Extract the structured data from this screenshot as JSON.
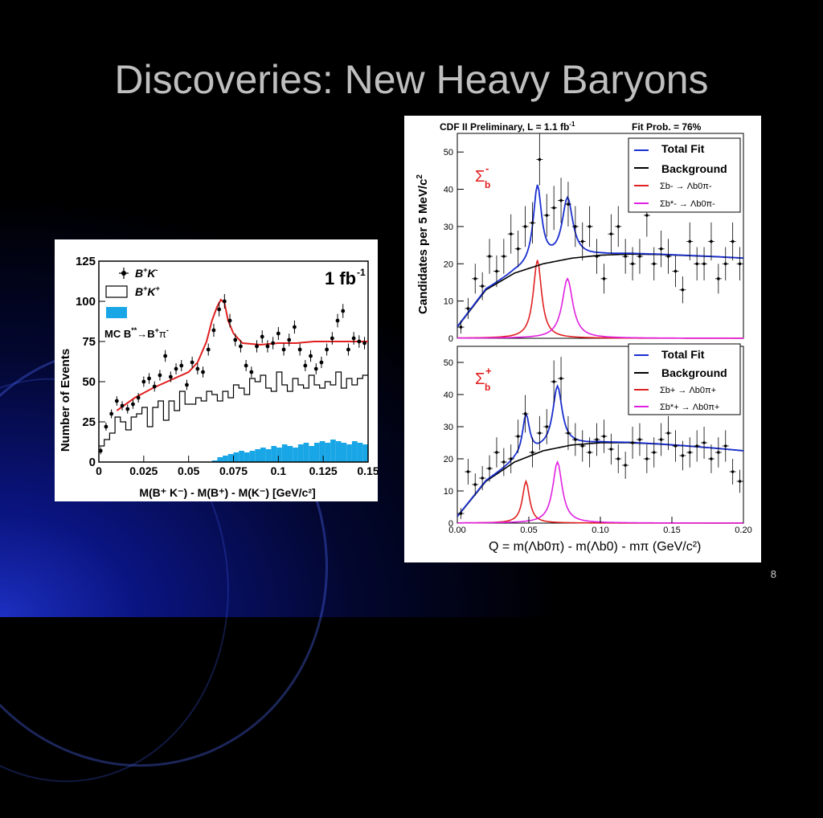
{
  "slide": {
    "title": "Discoveries: New Heavy Baryons",
    "page_number": "8"
  },
  "colors": {
    "fit_red": "#e02020",
    "fit_blue": "#1a2fd0",
    "bg_black": "#000000",
    "sig_magenta": "#e020e0",
    "mc_fill": "#19a6e6"
  },
  "chart_data": [
    {
      "type": "scatter",
      "title": "",
      "xlabel": "M(B⁺ K⁻) - M(B⁺) - M(K⁻) [GeV/c²]",
      "ylabel": "Number of Events",
      "xlim": [
        0,
        0.15
      ],
      "ylim": [
        0,
        125
      ],
      "x_ticks": [
        "0",
        "0.025",
        "0.05",
        "0.075",
        "0.1",
        "0.125",
        "0.15"
      ],
      "y_ticks": [
        "0",
        "25",
        "50",
        "75",
        "100",
        "125"
      ],
      "annotation": "1 fb",
      "annotation_sup": "-1",
      "legend": [
        {
          "label": "B",
          "sup": "+",
          "label2": "K",
          "sup2": "-",
          "style": "points"
        },
        {
          "label": "B",
          "sup": "+",
          "label2": "K",
          "sup2": "+",
          "style": "histogram"
        },
        {
          "label": "MC B",
          "sup": "**",
          "label2": "→B",
          "sup2": "+",
          "label3": "π",
          "sup3": "-",
          "style": "filled"
        }
      ],
      "series": [
        {
          "name": "B+K-",
          "x": [
            0.001,
            0.004,
            0.007,
            0.01,
            0.013,
            0.016,
            0.019,
            0.022,
            0.025,
            0.028,
            0.031,
            0.034,
            0.037,
            0.04,
            0.043,
            0.046,
            0.049,
            0.052,
            0.055,
            0.058,
            0.061,
            0.064,
            0.067,
            0.07,
            0.073,
            0.076,
            0.079,
            0.082,
            0.085,
            0.088,
            0.091,
            0.094,
            0.097,
            0.1,
            0.103,
            0.106,
            0.109,
            0.112,
            0.115,
            0.118,
            0.121,
            0.124,
            0.127,
            0.13,
            0.133,
            0.136,
            0.139,
            0.142,
            0.145,
            0.148
          ],
          "y": [
            7,
            22,
            30,
            38,
            35,
            33,
            36,
            40,
            50,
            52,
            47,
            54,
            66,
            53,
            58,
            60,
            48,
            62,
            58,
            56,
            70,
            82,
            95,
            100,
            88,
            76,
            72,
            60,
            56,
            72,
            78,
            72,
            74,
            80,
            70,
            76,
            84,
            70,
            60,
            66,
            58,
            62,
            70,
            77,
            88,
            94,
            70,
            77,
            75,
            74
          ]
        },
        {
          "name": "B+K+",
          "x": [
            0,
            0.003,
            0.006,
            0.009,
            0.012,
            0.015,
            0.018,
            0.021,
            0.024,
            0.027,
            0.03,
            0.033,
            0.036,
            0.039,
            0.042,
            0.045,
            0.048,
            0.051,
            0.054,
            0.057,
            0.06,
            0.063,
            0.066,
            0.069,
            0.072,
            0.075,
            0.078,
            0.081,
            0.084,
            0.087,
            0.09,
            0.093,
            0.096,
            0.099,
            0.102,
            0.105,
            0.108,
            0.111,
            0.114,
            0.117,
            0.12,
            0.123,
            0.126,
            0.129,
            0.132,
            0.135,
            0.138,
            0.141,
            0.144,
            0.147
          ],
          "y": [
            10,
            14,
            18,
            28,
            25,
            20,
            28,
            30,
            34,
            22,
            34,
            38,
            26,
            38,
            32,
            44,
            36,
            36,
            40,
            38,
            44,
            42,
            38,
            44,
            40,
            48,
            46,
            42,
            52,
            50,
            54,
            46,
            44,
            56,
            48,
            44,
            52,
            48,
            46,
            54,
            48,
            46,
            50,
            48,
            56,
            46,
            52,
            48,
            52,
            54
          ]
        },
        {
          "name": "MC B**→B+π-",
          "x": [
            0.063,
            0.066,
            0.069,
            0.072,
            0.075,
            0.078,
            0.081,
            0.084,
            0.087,
            0.09,
            0.093,
            0.096,
            0.099,
            0.102,
            0.105,
            0.108,
            0.111,
            0.114,
            0.117,
            0.12,
            0.123,
            0.126,
            0.129,
            0.132,
            0.135,
            0.138,
            0.141,
            0.144,
            0.147
          ],
          "y": [
            1,
            3,
            4,
            5,
            6,
            7,
            6,
            7,
            8,
            9,
            8,
            10,
            9,
            11,
            10,
            9,
            11,
            12,
            10,
            12,
            13,
            12,
            14,
            13,
            12,
            11,
            13,
            12,
            11
          ]
        },
        {
          "name": "fit",
          "x": [
            0.01,
            0.02,
            0.03,
            0.04,
            0.05,
            0.055,
            0.06,
            0.063,
            0.066,
            0.068,
            0.07,
            0.072,
            0.075,
            0.08,
            0.09,
            0.1,
            0.11,
            0.12,
            0.13,
            0.14,
            0.15
          ],
          "y": [
            32,
            40,
            46,
            51,
            56,
            62,
            75,
            88,
            97,
            101,
            99,
            88,
            80,
            74,
            73,
            74,
            74,
            75,
            75,
            75,
            75
          ]
        }
      ]
    },
    {
      "type": "scatter",
      "title": "CDF II Preliminary, L = 1.1 fb",
      "title_sup": "-1",
      "fit_prob": "Fit Prob. = 76%",
      "ylabel": "Candidates per 5 MeV/c",
      "ylabel_sup": "2",
      "label": "Σ",
      "label_sub": "b",
      "label_sup": "-",
      "xlim": [
        0,
        0.2
      ],
      "ylim": [
        0,
        55
      ],
      "y_ticks": [
        "0",
        "10",
        "20",
        "30",
        "40",
        "50"
      ],
      "legend": [
        {
          "label": "Total Fit",
          "color": "#1a2fd0"
        },
        {
          "label": "Background",
          "color": "#000000"
        },
        {
          "label": "Σb- → Λb0π-",
          "color": "#e02020"
        },
        {
          "label": "Σb*- → Λb0π-",
          "color": "#e020e0"
        }
      ],
      "points": {
        "x": [
          0.0025,
          0.0075,
          0.0125,
          0.0175,
          0.0225,
          0.0275,
          0.0325,
          0.0375,
          0.0425,
          0.0475,
          0.0525,
          0.0575,
          0.0625,
          0.0675,
          0.0725,
          0.0775,
          0.0825,
          0.0875,
          0.0925,
          0.0975,
          0.1025,
          0.1075,
          0.1125,
          0.1175,
          0.1225,
          0.1275,
          0.1325,
          0.1375,
          0.1425,
          0.1475,
          0.1525,
          0.1575,
          0.1625,
          0.1675,
          0.1725,
          0.1775,
          0.1825,
          0.1875,
          0.1925,
          0.1975
        ],
        "y": [
          3,
          8,
          16,
          14,
          22,
          18,
          22,
          28,
          24,
          30,
          31,
          48,
          33,
          35,
          37,
          36,
          30,
          26,
          30,
          22,
          16,
          28,
          30,
          22,
          20,
          22,
          33,
          20,
          24,
          22,
          18,
          13,
          26,
          20,
          20,
          26,
          16,
          20,
          26,
          20
        ]
      }
    },
    {
      "type": "scatter",
      "label": "Σ",
      "label_sub": "b",
      "label_sup": "+",
      "xlabel": "Q = m(Λb0π) - m(Λb0) - mπ  (GeV/c²)",
      "xlim": [
        0,
        0.2
      ],
      "ylim": [
        0,
        55
      ],
      "x_ticks": [
        "0.00",
        "0.05",
        "0.10",
        "0.15",
        "0.20"
      ],
      "y_ticks": [
        "0",
        "10",
        "20",
        "30",
        "40",
        "50"
      ],
      "legend": [
        {
          "label": "Total Fit",
          "color": "#1a2fd0"
        },
        {
          "label": "Background",
          "color": "#000000"
        },
        {
          "label": "Σb+ → Λb0π+",
          "color": "#e02020"
        },
        {
          "label": "Σb*+ → Λb0π+",
          "color": "#e020e0"
        }
      ],
      "points": {
        "x": [
          0.0025,
          0.0075,
          0.0125,
          0.0175,
          0.0225,
          0.0275,
          0.0325,
          0.0375,
          0.0425,
          0.0475,
          0.0525,
          0.0575,
          0.0625,
          0.0675,
          0.0725,
          0.0775,
          0.0825,
          0.0875,
          0.0925,
          0.0975,
          0.1025,
          0.1075,
          0.1125,
          0.1175,
          0.1225,
          0.1275,
          0.1325,
          0.1375,
          0.1425,
          0.1475,
          0.1525,
          0.1575,
          0.1625,
          0.1675,
          0.1725,
          0.1775,
          0.1825,
          0.1875,
          0.1925,
          0.1975
        ],
        "y": [
          3,
          16,
          12,
          14,
          17,
          22,
          19,
          20,
          27,
          34,
          22,
          28,
          30,
          44,
          45,
          28,
          26,
          24,
          22,
          26,
          27,
          23,
          20,
          18,
          25,
          26,
          20,
          22,
          26,
          28,
          24,
          21,
          22,
          24,
          25,
          20,
          22,
          24,
          16,
          13
        ]
      }
    }
  ],
  "legend_text": {
    "total_fit": "Total Fit",
    "background": "Background",
    "sig_minus": "Σ",
    "sig_sub": "b",
    "arrow": "→",
    "lambda": "Λ",
    "lambda_sub": "b",
    "lambda_sup": "0",
    "pi": "π"
  }
}
